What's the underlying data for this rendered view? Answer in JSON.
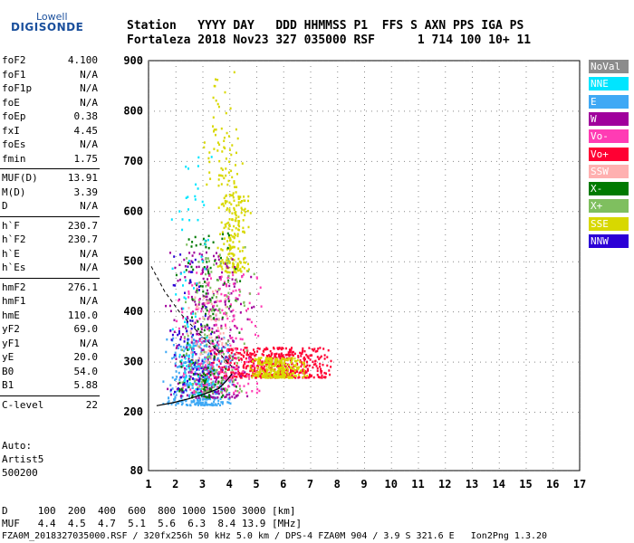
{
  "logo": {
    "line1": "Lowell",
    "line2": "DIGISONDE"
  },
  "header": {
    "row1": "Station   YYYY DAY   DDD HHMMSS P1  FFS S AXN PPS IGA PS",
    "row2": "Fortaleza 2018 Nov23 327 035000 RSF      1 714 100 10+ 11"
  },
  "params": [
    {
      "label": "foF2",
      "value": "4.100"
    },
    {
      "label": "foF1",
      "value": "N/A"
    },
    {
      "label": "foF1p",
      "value": "N/A"
    },
    {
      "label": "foE",
      "value": "N/A"
    },
    {
      "label": "foEp",
      "value": "0.38"
    },
    {
      "label": "fxI",
      "value": "4.45"
    },
    {
      "label": "foEs",
      "value": "N/A"
    },
    {
      "label": "fmin",
      "value": "1.75"
    },
    {
      "label": "MUF(D)",
      "value": "13.91"
    },
    {
      "label": "M(D)",
      "value": "3.39"
    },
    {
      "label": "D",
      "value": "N/A"
    },
    {
      "label": "h`F",
      "value": "230.7"
    },
    {
      "label": "h`F2",
      "value": "230.7"
    },
    {
      "label": "h`E",
      "value": "N/A"
    },
    {
      "label": "h`Es",
      "value": "N/A"
    },
    {
      "label": "hmF2",
      "value": "276.1"
    },
    {
      "label": "hmF1",
      "value": "N/A"
    },
    {
      "label": "hmE",
      "value": "110.0"
    },
    {
      "label": "yF2",
      "value": "69.0"
    },
    {
      "label": "yF1",
      "value": "N/A"
    },
    {
      "label": "yE",
      "value": "20.0"
    },
    {
      "label": "B0",
      "value": "54.0"
    },
    {
      "label": "B1",
      "value": "5.88"
    },
    {
      "label": "C-level",
      "value": "22"
    }
  ],
  "notes": [
    "Auto:",
    "Artist5",
    "500200"
  ],
  "footer": {
    "d_row": "D     100  200  400  600  800 1000 1500 3000 [km]",
    "muf_row": "MUF   4.4  4.5  4.7  5.1  5.6  6.3  8.4 13.9 [MHz]",
    "info": "FZA0M_2018327035000.RSF / 320fx256h 50 kHz 5.0 km / DPS-4 FZA0M 904 / 3.9 S 321.6 E   Ion2Png 1.3.20"
  },
  "legend": [
    {
      "label": "NoVal",
      "color": "#8c8c8c"
    },
    {
      "label": "NNE",
      "color": "#00e5ff"
    },
    {
      "label": "E",
      "color": "#3fa9f5"
    },
    {
      "label": "W",
      "color": "#a0009c"
    },
    {
      "label": "Vo-",
      "color": "#ff3cb4"
    },
    {
      "label": "Vo+",
      "color": "#ff0033"
    },
    {
      "label": "SSW",
      "color": "#ffb0b0"
    },
    {
      "label": "X-",
      "color": "#007a00"
    },
    {
      "label": "X+",
      "color": "#7fbf5f"
    },
    {
      "label": "SSE",
      "color": "#d8d800"
    },
    {
      "label": "NNW",
      "color": "#2b00d6"
    }
  ],
  "chart_data": {
    "type": "scatter",
    "xlim": [
      1,
      17
    ],
    "ylim": [
      80,
      900
    ],
    "xticks": [
      1,
      2,
      3,
      4,
      5,
      6,
      7,
      8,
      9,
      10,
      11,
      12,
      13,
      14,
      15,
      16,
      17
    ],
    "yticks": [
      80,
      200,
      300,
      400,
      500,
      600,
      700,
      800,
      900
    ],
    "grid": true,
    "legend_placement": "right",
    "clusters": [
      {
        "series": "E",
        "f": [
          1.5,
          4.3
        ],
        "h": [
          215,
          350
        ],
        "n": 420
      },
      {
        "series": "Vo+",
        "f": [
          3.0,
          8.0
        ],
        "h": [
          270,
          330
        ],
        "n": 520
      },
      {
        "series": "SSE",
        "f": [
          4.5,
          7.0
        ],
        "h": [
          270,
          310
        ],
        "n": 260
      },
      {
        "series": "SSE",
        "f": [
          3.5,
          4.8
        ],
        "h": [
          480,
          640
        ],
        "n": 200
      },
      {
        "series": "SSE",
        "f": [
          3.0,
          4.5
        ],
        "h": [
          650,
          880
        ],
        "n": 70
      },
      {
        "series": "W",
        "f": [
          1.5,
          5.0
        ],
        "h": [
          230,
          520
        ],
        "n": 300
      },
      {
        "series": "Vo-",
        "f": [
          1.7,
          5.5
        ],
        "h": [
          240,
          480
        ],
        "n": 220
      },
      {
        "series": "X-",
        "f": [
          1.8,
          4.5
        ],
        "h": [
          230,
          560
        ],
        "n": 140
      },
      {
        "series": "X+",
        "f": [
          2.0,
          5.0
        ],
        "h": [
          240,
          540
        ],
        "n": 130
      },
      {
        "series": "NNE",
        "f": [
          1.8,
          3.5
        ],
        "h": [
          230,
          720
        ],
        "n": 80
      },
      {
        "series": "NNW",
        "f": [
          1.6,
          3.5
        ],
        "h": [
          240,
          520
        ],
        "n": 70
      },
      {
        "series": "SSW",
        "f": [
          2.0,
          4.5
        ],
        "h": [
          300,
          460
        ],
        "n": 60
      }
    ],
    "profile_curve": {
      "f": [
        1.3,
        1.9,
        2.5,
        3.1,
        3.6,
        3.9,
        4.1
      ],
      "h": [
        212,
        218,
        226,
        236,
        246,
        262,
        276
      ]
    },
    "dashed_curve": {
      "f": [
        1.1,
        1.6,
        2.2,
        2.9,
        3.5,
        3.9,
        4.1
      ],
      "h": [
        490,
        440,
        395,
        355,
        325,
        300,
        290
      ]
    }
  }
}
